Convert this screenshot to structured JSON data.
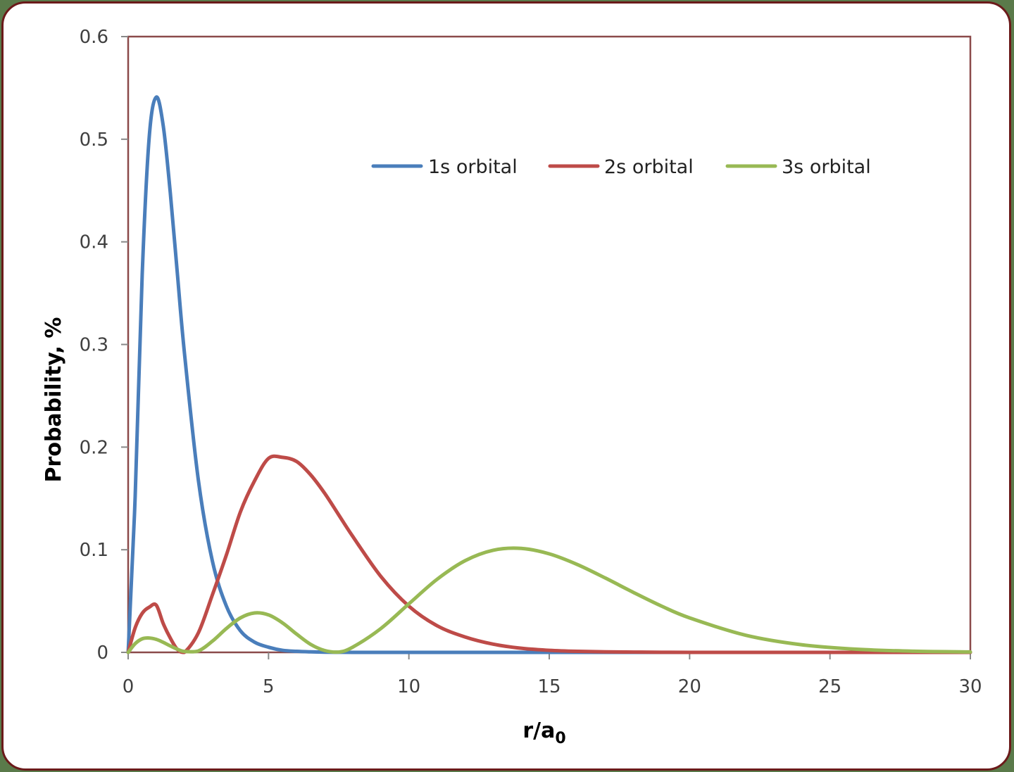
{
  "chart_data": {
    "type": "line",
    "title": "",
    "xlabel": "r/a0",
    "xlabel_main": "r/a",
    "xlabel_sub": "0",
    "ylabel": "Probability, %",
    "xlim": [
      0,
      30
    ],
    "ylim": [
      0,
      0.6
    ],
    "x_ticks": [
      "0",
      "5",
      "10",
      "15",
      "20",
      "25",
      "30"
    ],
    "y_ticks": [
      "0",
      "0.1",
      "0.2",
      "0.3",
      "0.4",
      "0.5",
      "0.6"
    ],
    "grid": false,
    "legend_position": "top-right inside",
    "x": [
      0,
      0.25,
      0.5,
      0.75,
      1,
      1.25,
      1.5,
      1.75,
      2,
      2.5,
      3,
      3.5,
      4,
      4.5,
      5,
      5.5,
      6,
      6.5,
      7,
      7.5,
      8,
      9,
      10,
      11,
      12,
      13,
      14,
      15,
      16,
      17,
      18,
      19,
      20,
      22,
      24,
      26,
      28,
      30
    ],
    "series": [
      {
        "name": "1s orbital",
        "color": "#4a7ebb",
        "values": [
          0,
          0.152,
          0.368,
          0.502,
          0.541,
          0.513,
          0.448,
          0.37,
          0.293,
          0.168,
          0.089,
          0.045,
          0.021,
          0.01,
          0.005,
          0.002,
          0.001,
          0.0005,
          0.0002,
          0.0001,
          0,
          0,
          0,
          0,
          0,
          0,
          0,
          0,
          0,
          0,
          0,
          0,
          0,
          0,
          0,
          0,
          0,
          0
        ]
      },
      {
        "name": "2s orbital",
        "color": "#be4b48",
        "values": [
          0,
          0.024,
          0.038,
          0.044,
          0.046,
          0.028,
          0.014,
          0.003,
          0,
          0.019,
          0.056,
          0.095,
          0.137,
          0.167,
          0.189,
          0.19,
          0.186,
          0.173,
          0.155,
          0.134,
          0.113,
          0.074,
          0.045,
          0.026,
          0.015,
          0.008,
          0.004,
          0.002,
          0.001,
          0.0005,
          0.0003,
          0.0001,
          0,
          0,
          0,
          0,
          0,
          0
        ]
      },
      {
        "name": "3s orbital",
        "color": "#98b954",
        "values": [
          0,
          0.0085,
          0.0132,
          0.014,
          0.0127,
          0.0098,
          0.0063,
          0.0031,
          0.0009,
          0.0014,
          0.0109,
          0.0233,
          0.0336,
          0.0384,
          0.0365,
          0.0287,
          0.0178,
          0.0078,
          0.0018,
          0.0003,
          0.0051,
          0.0232,
          0.0473,
          0.0711,
          0.0893,
          0.0995,
          0.1013,
          0.096,
          0.0856,
          0.0724,
          0.0584,
          0.0451,
          0.0336,
          0.0167,
          0.0074,
          0.003,
          0.0011,
          0.0004
        ]
      }
    ]
  }
}
